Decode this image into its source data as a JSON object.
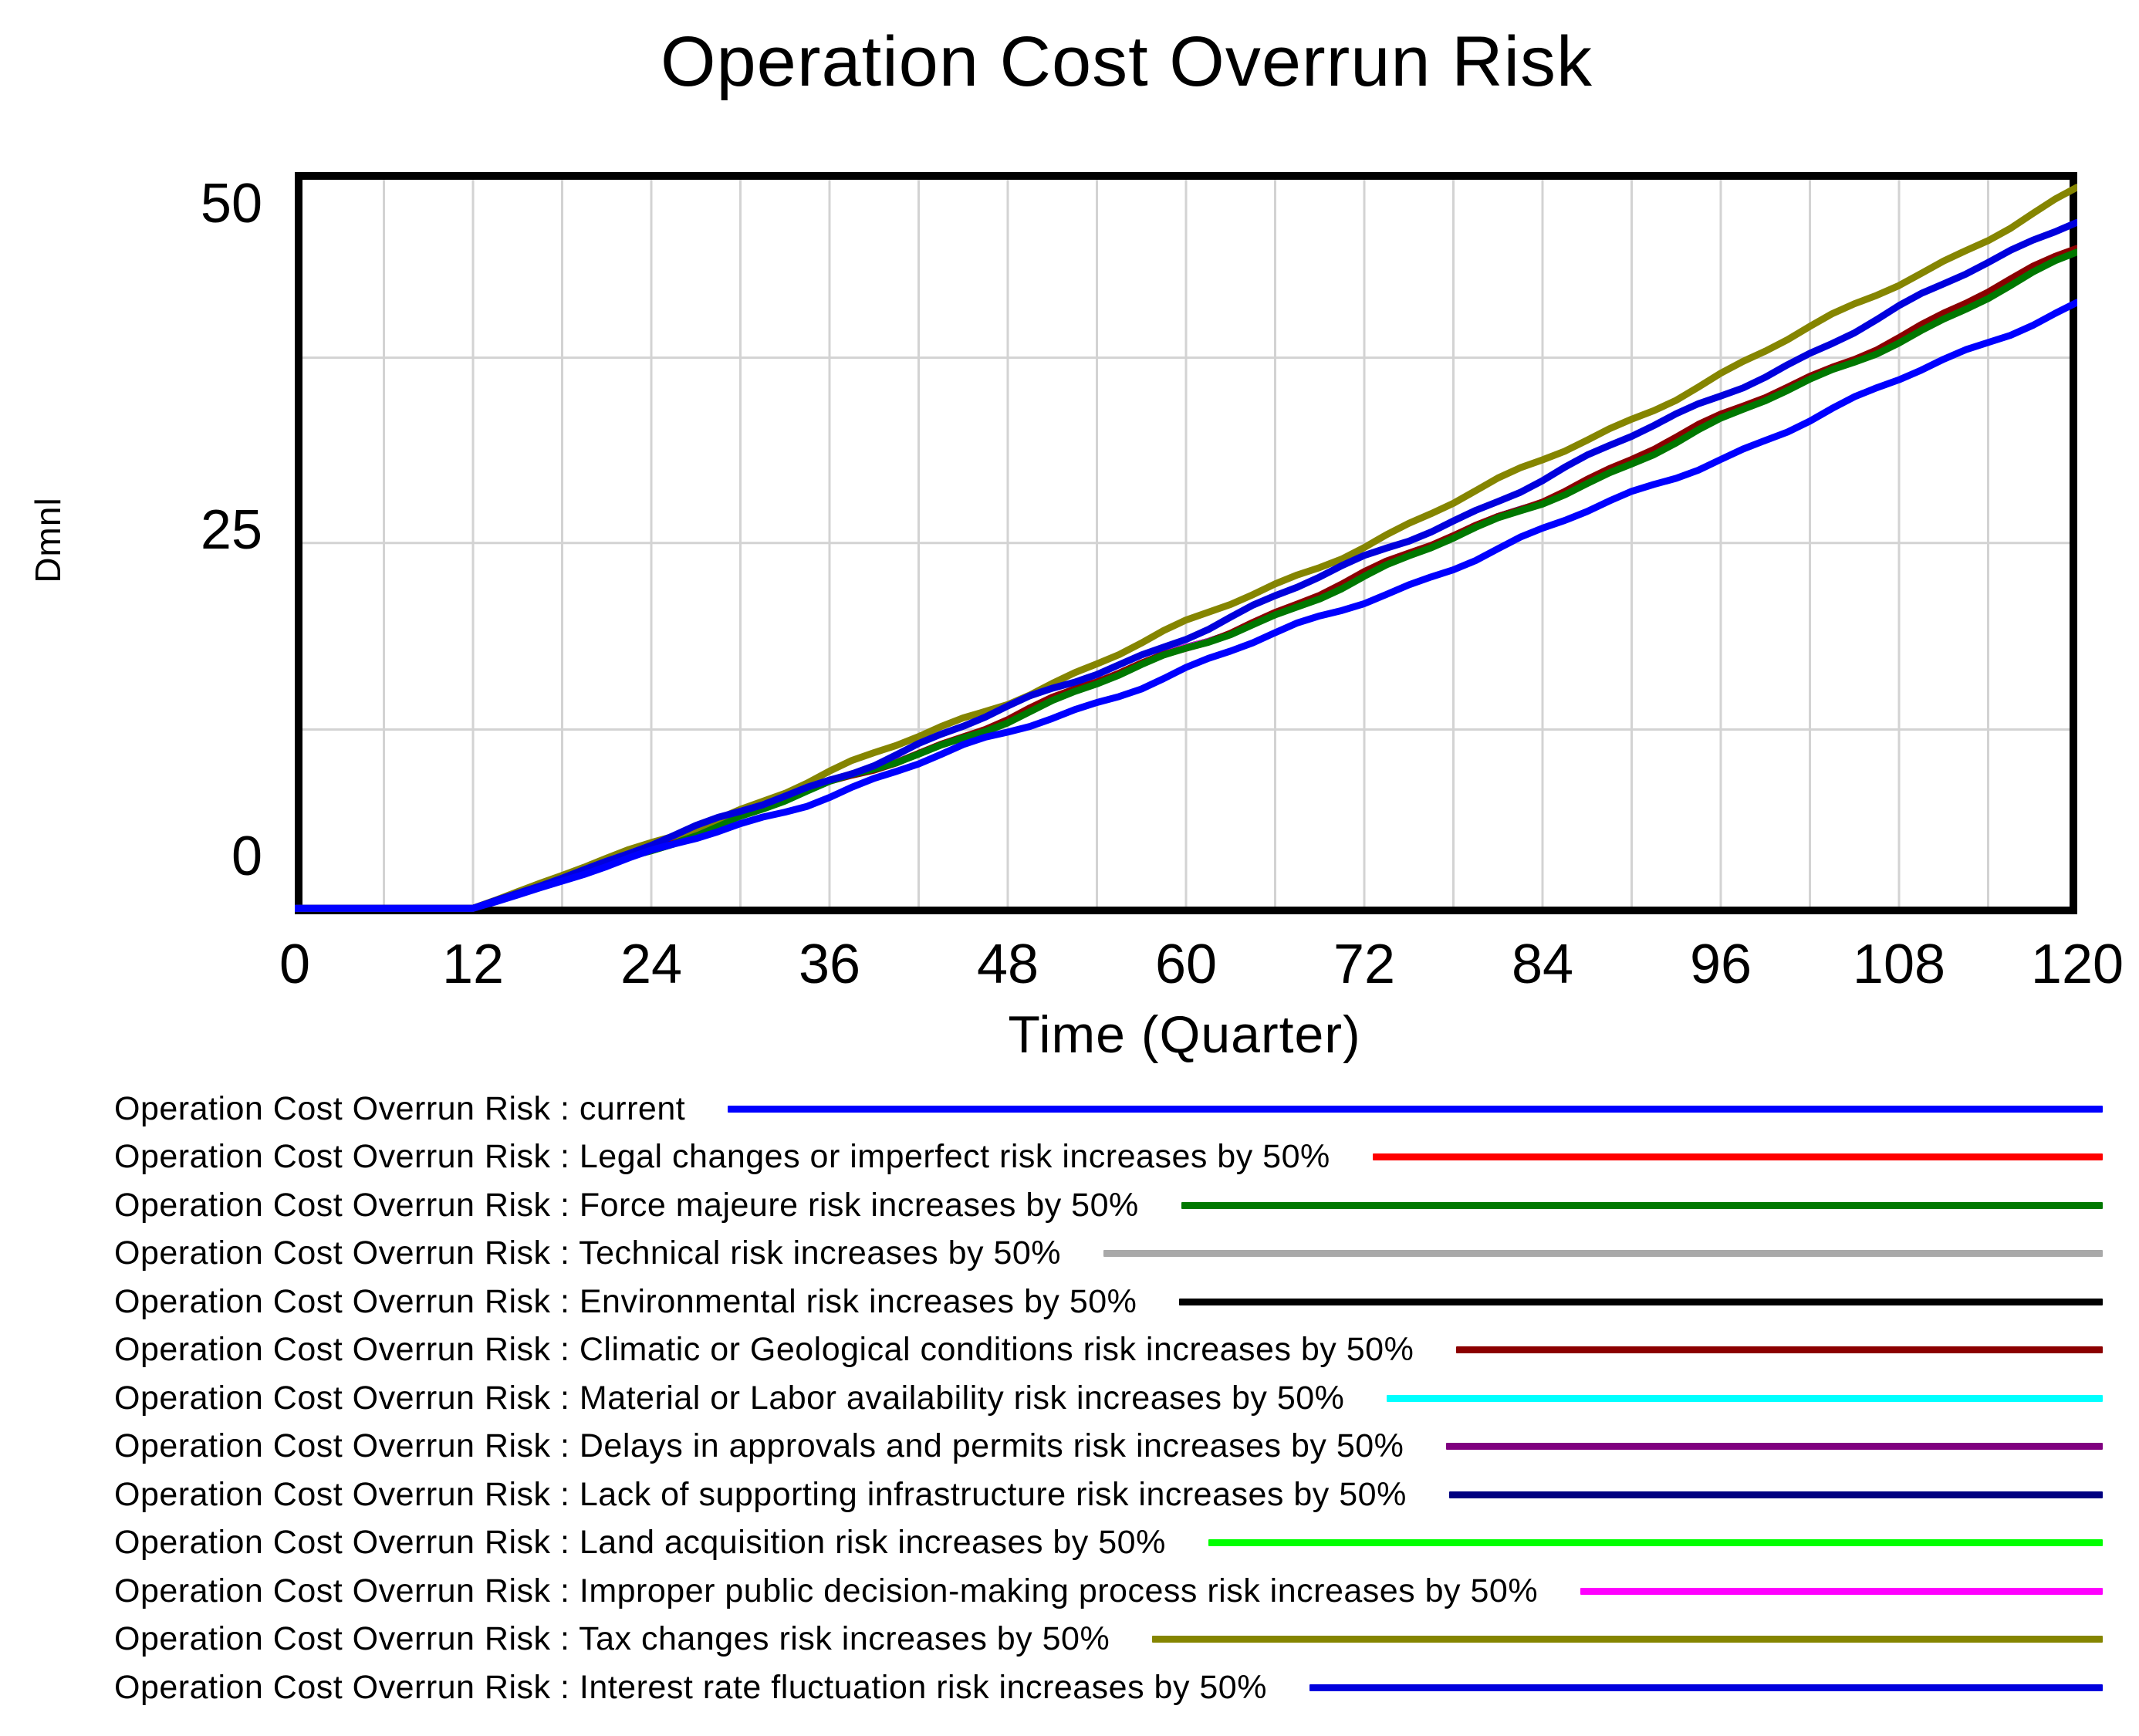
{
  "chart_data": {
    "type": "line",
    "title": "Operation Cost Overrun Risk",
    "ylabel": "Dmnl",
    "xlabel": "Time (Quarter)",
    "x_ticks": [
      "0",
      "12",
      "24",
      "36",
      "48",
      "60",
      "72",
      "84",
      "96",
      "108",
      "120"
    ],
    "x_tick_values": [
      0,
      12,
      24,
      36,
      48,
      60,
      72,
      84,
      96,
      108,
      120
    ],
    "y_ticks": [
      "0",
      "25",
      "50"
    ],
    "y_tick_values": [
      0,
      25,
      50
    ],
    "xlim": [
      0,
      120
    ],
    "ylim": [
      -4.46,
      52.43
    ],
    "x_gridline_step": 6,
    "y_gridline_values": [
      9.7,
      24.0,
      38.2
    ],
    "grid": true,
    "legend_position": "bottom",
    "flat_until": 12,
    "flat_value": -4.0,
    "series": [
      {
        "label": "Operation Cost Overrun Risk : current",
        "scenario": "current",
        "color": "#0000ff",
        "end_value": 42.5
      },
      {
        "label": "Operation Cost Overrun Risk : Legal changes or imperfect risk increases by 50%",
        "scenario": "Legal changes or imperfect risk increases by 50%",
        "color": "#ff0000",
        "end_value": 46.28
      },
      {
        "label": "Operation Cost Overrun Risk : Force majeure risk increases by 50%",
        "scenario": "Force majeure risk increases by 50%",
        "color": "#007800",
        "end_value": 46.15
      },
      {
        "label": "Operation Cost Overrun Risk : Technical risk increases by 50%",
        "scenario": "Technical risk increases by 50%",
        "color": "#a9a9a9",
        "end_value": 46.22
      },
      {
        "label": "Operation Cost Overrun Risk : Environmental risk increases by 50%",
        "scenario": "Environmental risk increases by 50%",
        "color": "#000000",
        "end_value": 46.32
      },
      {
        "label": "Operation Cost Overrun Risk : Climatic or Geological conditions risk increases by 50%",
        "scenario": "Climatic or Geological conditions risk increases by 50%",
        "color": "#8b0000",
        "end_value": 46.55
      },
      {
        "label": "Operation Cost Overrun Risk : Material or Labor availability risk increases by 50%",
        "scenario": "Material or Labor availability risk increases by 50%",
        "color": "#00ffff",
        "end_value": 46.2
      },
      {
        "label": "Operation Cost Overrun Risk : Delays in approvals and permits risk increases by 50%",
        "scenario": "Delays in approvals and permits risk increases by 50%",
        "color": "#800080",
        "end_value": 46.26
      },
      {
        "label": "Operation Cost Overrun Risk : Lack of supporting infrastructure risk increases by 50%",
        "scenario": "Lack of supporting infrastructure risk increases by 50%",
        "color": "#000080",
        "end_value": 46.3
      },
      {
        "label": "Operation Cost Overrun Risk : Land acquisition risk increases by 50%",
        "scenario": "Land acquisition risk increases by 50%",
        "color": "#00ff00",
        "end_value": 46.24
      },
      {
        "label": "Operation Cost Overrun Risk : Improper public decision-making process risk increases by 50%",
        "scenario": "Improper public decision-making process risk increases by 50%",
        "color": "#ff00ff",
        "end_value": 46.28
      },
      {
        "label": "Operation Cost Overrun Risk : Tax changes risk increases by 50%",
        "scenario": "Tax changes risk increases by 50%",
        "color": "#858500",
        "end_value": 51.1
      },
      {
        "label": "Operation Cost Overrun Risk : Interest rate fluctuation risk increases by 50%",
        "scenario": "Interest rate fluctuation risk increases by 50%",
        "color": "#0000dd",
        "end_value": 48.9
      }
    ],
    "colors": {
      "grid": "#d3d3d3",
      "frame": "#000000",
      "background": "#ffffff"
    }
  }
}
